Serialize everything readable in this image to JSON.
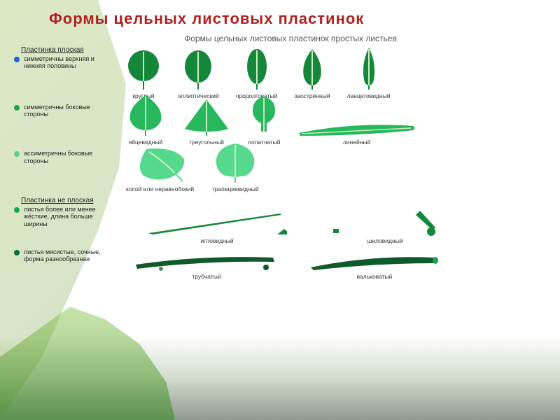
{
  "title": "Формы цельных листовых пластинок",
  "subtitle": "Формы цельных листовых пластинок простых листьев",
  "sections": {
    "flat": "Пластинка плоская",
    "notflat": "Пластинка не плоская"
  },
  "bullets": [
    {
      "color": "#1f5fd8",
      "text": "симметричны верхняя и нижняя половины"
    },
    {
      "color": "#19a84d",
      "text": "симметричны боковые стороны"
    },
    {
      "color": "#5bd48a",
      "text": "ассиметричны боковые стороны"
    },
    {
      "color": "#19a84d",
      "text": "листья более или менее жёсткие, длина больше ширины"
    },
    {
      "color": "#0e6b32",
      "text": "листья мясистые, сочные, форма разнообразная"
    }
  ],
  "rows": [
    {
      "color": "#15873a",
      "items": [
        {
          "label": "круглый",
          "shape": "circle"
        },
        {
          "label": "эллиптический",
          "shape": "ellipse"
        },
        {
          "label": "продолговатый",
          "shape": "oblong"
        },
        {
          "label": "заострённый",
          "shape": "acute"
        },
        {
          "label": "ланцетовидный",
          "shape": "lanceolate"
        }
      ]
    },
    {
      "color": "#27b85d",
      "items": [
        {
          "label": "яйцевидный",
          "shape": "ovate"
        },
        {
          "label": "треугольный",
          "shape": "triangle"
        },
        {
          "label": "лопатчатый",
          "shape": "spatulate"
        },
        {
          "label": "линейный",
          "shape": "linear"
        }
      ]
    },
    {
      "color": "#56d88e",
      "items": [
        {
          "label": "косой или неравнобокий",
          "shape": "oblique"
        },
        {
          "label": "трапециевидный",
          "shape": "trapezoid"
        }
      ]
    },
    {
      "color": "#15873a",
      "items": [
        {
          "label": "игловидный",
          "shape": "needle"
        },
        {
          "label": "шиловидный",
          "shape": "awl"
        }
      ]
    },
    {
      "color": "#0e5a2a",
      "items": [
        {
          "label": "трубчатый",
          "shape": "tubular"
        },
        {
          "label": "вальковатый",
          "shape": "terete"
        }
      ]
    }
  ],
  "stroke": {
    "midrib": "#c7f0c0",
    "midrib_dark": "#8fd49a"
  }
}
